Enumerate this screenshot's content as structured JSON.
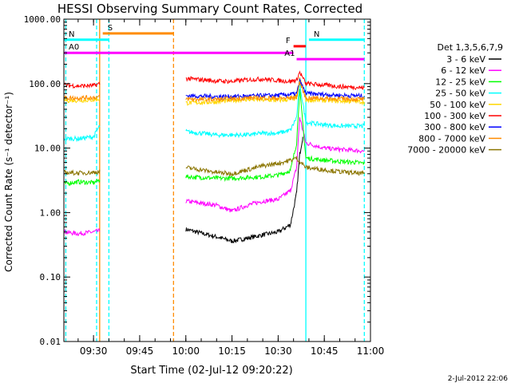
{
  "chart_data": {
    "type": "line",
    "title": "HESSI Observing Summary Count Rates, Corrected",
    "xlabel": "Start Time (02-Jul-12 09:20:22)",
    "ylabel": "Corrected Count Rate (s⁻¹ detector⁻¹)",
    "y_scale": "log",
    "ylim": [
      0.01,
      1000
    ],
    "y_ticks": [
      "0.01",
      "0.10",
      "1.00",
      "10.00",
      "100.00",
      "1000.00"
    ],
    "xlim": [
      "09:20:22",
      "11:00:00"
    ],
    "x_ticks": [
      "09:30",
      "09:45",
      "10:00",
      "10:15",
      "10:30",
      "10:45",
      "11:00"
    ],
    "legend_title": "Det 1,3,5,6,7,9",
    "legend_position": "right",
    "timestamp": "2-Jul-2012 22:06",
    "series": [
      {
        "name": "3 - 6 keV",
        "color": "#000000",
        "segments": [
          {
            "t": [
              "10:00",
              "10:05",
              "10:10",
              "10:15",
              "10:20",
              "10:25",
              "10:30",
              "10:34",
              "10:36",
              "10:37",
              "10:38"
            ],
            "v": [
              0.55,
              0.48,
              0.42,
              0.36,
              0.4,
              0.45,
              0.5,
              0.65,
              2,
              8,
              15
            ]
          }
        ]
      },
      {
        "name": "6 - 12 keV",
        "color": "#ff00ff",
        "segments": [
          {
            "t": [
              "09:20:22",
              "09:25",
              "09:30",
              "09:32"
            ],
            "v": [
              0.5,
              0.47,
              0.5,
              0.52
            ]
          },
          {
            "t": [
              "10:00",
              "10:05",
              "10:10",
              "10:15",
              "10:20",
              "10:25",
              "10:30",
              "10:34",
              "10:36",
              "10:37",
              "10:39",
              "10:45",
              "10:50",
              "10:55",
              "10:58"
            ],
            "v": [
              1.5,
              1.4,
              1.3,
              1.05,
              1.3,
              1.5,
              1.6,
              2.2,
              5,
              30,
              12,
              10,
              9.5,
              9.2,
              9
            ]
          }
        ]
      },
      {
        "name": "12 - 25 keV",
        "color": "#00ff00",
        "segments": [
          {
            "t": [
              "09:20:22",
              "09:25",
              "09:30",
              "09:32"
            ],
            "v": [
              2.8,
              3,
              2.9,
              3.2
            ]
          },
          {
            "t": [
              "10:00",
              "10:05",
              "10:10",
              "10:15",
              "10:20",
              "10:25",
              "10:30",
              "10:34",
              "10:36",
              "10:37",
              "10:39",
              "10:45",
              "10:50",
              "10:55",
              "10:58"
            ],
            "v": [
              3.6,
              3.5,
              3.4,
              3.4,
              3.5,
              3.6,
              3.8,
              4.5,
              12,
              80,
              7,
              6.5,
              6.2,
              6,
              5.8
            ]
          }
        ]
      },
      {
        "name": "25 - 50 keV",
        "color": "#00ffff",
        "segments": [
          {
            "t": [
              "09:20:22",
              "09:25",
              "09:30",
              "09:32"
            ],
            "v": [
              14,
              14,
              15,
              22
            ]
          },
          {
            "t": [
              "10:00",
              "10:05",
              "10:10",
              "10:15",
              "10:20",
              "10:25",
              "10:30",
              "10:34",
              "10:36",
              "10:37",
              "10:39",
              "10:45",
              "10:50",
              "10:55",
              "10:58"
            ],
            "v": [
              18,
              17,
              16,
              16,
              16,
              17,
              17,
              19,
              30,
              100,
              25,
              23,
              22,
              22,
              22
            ]
          }
        ]
      },
      {
        "name": "50 - 100 keV",
        "color": "#ffd700",
        "segments": [
          {
            "t": [
              "09:20:22",
              "09:25",
              "09:30",
              "09:32"
            ],
            "v": [
              55,
              55,
              56,
              58
            ]
          },
          {
            "t": [
              "10:00",
              "10:05",
              "10:10",
              "10:15",
              "10:20",
              "10:25",
              "10:30",
              "10:34",
              "10:36",
              "10:37",
              "10:39",
              "10:45",
              "10:50",
              "10:55",
              "10:58"
            ],
            "v": [
              50,
              51,
              52,
              55,
              57,
              56,
              55,
              57,
              60,
              120,
              56,
              55,
              54,
              53,
              52
            ]
          }
        ]
      },
      {
        "name": "100 - 300 keV",
        "color": "#ff0000",
        "segments": [
          {
            "t": [
              "09:20:22",
              "09:25",
              "09:30",
              "09:32"
            ],
            "v": [
              95,
              92,
              93,
              100
            ]
          },
          {
            "t": [
              "10:00",
              "10:05",
              "10:10",
              "10:15",
              "10:20",
              "10:25",
              "10:30",
              "10:34",
              "10:36",
              "10:37",
              "10:39",
              "10:45",
              "10:50",
              "10:55",
              "10:58"
            ],
            "v": [
              120,
              115,
              110,
              108,
              115,
              118,
              112,
              108,
              115,
              150,
              100,
              95,
              90,
              88,
              86
            ]
          }
        ]
      },
      {
        "name": "300 - 800 keV",
        "color": "#0000ff",
        "segments": [
          {
            "t": [
              "10:00",
              "10:05",
              "10:10",
              "10:15",
              "10:20",
              "10:25",
              "10:30",
              "10:34",
              "10:36",
              "10:37",
              "10:39",
              "10:45",
              "10:50",
              "10:55",
              "10:58"
            ],
            "v": [
              65,
              64,
              63,
              63,
              64,
              65,
              66,
              68,
              70,
              110,
              70,
              68,
              66,
              65,
              64
            ]
          }
        ]
      },
      {
        "name": "800 - 7000 keV",
        "color": "#ff8c00",
        "segments": [
          {
            "t": [
              "09:20:22",
              "09:25",
              "09:30",
              "09:32"
            ],
            "v": [
              60,
              60,
              61,
              62
            ]
          },
          {
            "t": [
              "10:00",
              "10:05",
              "10:10",
              "10:15",
              "10:20",
              "10:25",
              "10:30",
              "10:34",
              "10:36",
              "10:37",
              "10:39",
              "10:45",
              "10:50",
              "10:55",
              "10:58"
            ],
            "v": [
              58,
              57,
              57,
              58,
              60,
              60,
              59,
              60,
              62,
              105,
              60,
              59,
              58,
              58,
              57
            ]
          }
        ]
      },
      {
        "name": "7000 - 20000 keV",
        "color": "#8b7500",
        "segments": [
          {
            "t": [
              "09:20:22",
              "09:25",
              "09:30",
              "09:32"
            ],
            "v": [
              4.2,
              4.1,
              4.2,
              4.3
            ]
          },
          {
            "t": [
              "10:00",
              "10:05",
              "10:10",
              "10:15",
              "10:20",
              "10:25",
              "10:30",
              "10:34",
              "10:36",
              "10:39",
              "10:45",
              "10:50",
              "10:55",
              "10:58"
            ],
            "v": [
              5,
              4.6,
              4.2,
              4,
              4.6,
              5.3,
              5.8,
              6.5,
              7,
              5,
              4.6,
              4.3,
              4.1,
              4
            ]
          }
        ]
      }
    ],
    "interval_bars": [
      {
        "label": "S",
        "color": "#ff8c00",
        "start": "09:33",
        "end": "09:56",
        "v": 600
      },
      {
        "label": "N",
        "color": "#00ffff",
        "start": "09:20:22",
        "end": "09:35",
        "v": 480
      },
      {
        "label": "N",
        "color": "#00ffff",
        "start": "10:40",
        "end": "10:58",
        "v": 480
      },
      {
        "label": "F",
        "color": "#ff0000",
        "start": "10:35",
        "end": "10:39",
        "v": 380
      },
      {
        "label": "A0",
        "color": "#ff00ff",
        "start": "09:20:22",
        "end": "10:35",
        "v": 300
      },
      {
        "label": "A1",
        "color": "#ff00ff",
        "start": "10:36",
        "end": "10:58",
        "v": 240
      }
    ],
    "vertical_markers": [
      {
        "t": "09:21",
        "color": "#00ffff",
        "style": "dashed"
      },
      {
        "t": "09:31",
        "color": "#00ffff",
        "style": "dashed"
      },
      {
        "t": "09:32",
        "color": "#ff8c00",
        "style": "solid"
      },
      {
        "t": "09:35",
        "color": "#00ffff",
        "style": "dashed"
      },
      {
        "t": "09:56",
        "color": "#ff8c00",
        "style": "dashed"
      },
      {
        "t": "10:39",
        "color": "#00ffff",
        "style": "solid"
      },
      {
        "t": "10:58",
        "color": "#00ffff",
        "style": "dashed"
      }
    ]
  }
}
